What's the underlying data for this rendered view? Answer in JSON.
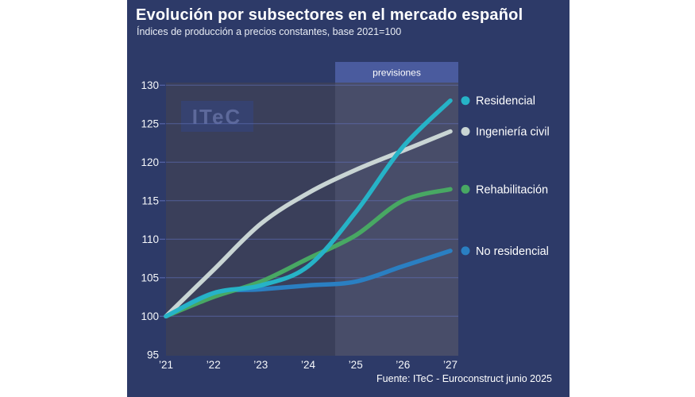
{
  "header": {
    "title": "Evolución por subsectores en el mercado español",
    "subtitle": "Índices de producción a precios constantes, base 2021=100"
  },
  "watermark": {
    "label": "ITeC"
  },
  "footer": {
    "source": "Fuente: ITeC - Euroconstruct junio 2025"
  },
  "colors": {
    "page_bg": "#ffffff",
    "panel_bg": "#2d3a68",
    "plot_bg": "#3a3f5a",
    "forecast_bg": "#484d69",
    "forecast_box_bg": "#4a5b9e",
    "gridline": "#6170b8",
    "watermark_bg": "#364270",
    "watermark_text": "#5d699b",
    "axis_text": "#f5f7fa",
    "legend_text": "#ffffff"
  },
  "chart_data": {
    "type": "line",
    "title": "Evolución por subsectores en el mercado español",
    "subtitle": "Índices de producción a precios constantes, base 2021=100",
    "source": "Fuente: ITeC - Euroconstruct junio 2025",
    "x_labels": [
      "’21",
      "’22",
      "’23",
      "’24",
      "’25",
      "’26",
      "’27"
    ],
    "yticks": [
      95,
      100,
      105,
      110,
      115,
      120,
      125,
      130
    ],
    "ylim": [
      95,
      130
    ],
    "grid": true,
    "legend_position": "right, at line ends",
    "forecast_region": {
      "label": "previsiones",
      "start_year_fraction": 3.57
    },
    "series": [
      {
        "name": "No residencial",
        "color": "#2a7fc2",
        "values": [
          100,
          103,
          103.5,
          104,
          104.5,
          106.5,
          108.5
        ]
      },
      {
        "name": "Rehabilitación",
        "color": "#48a863",
        "values": [
          100,
          102.5,
          104.5,
          107.5,
          110.5,
          115,
          116.5
        ]
      },
      {
        "name": "Ingeniería civil",
        "color": "#c9d5d4",
        "values": [
          100,
          106,
          112,
          116,
          119,
          121.5,
          124
        ]
      },
      {
        "name": "Residencial",
        "color": "#26b3c7",
        "values": [
          100,
          103,
          104,
          106.5,
          113.5,
          122,
          128
        ]
      }
    ]
  }
}
